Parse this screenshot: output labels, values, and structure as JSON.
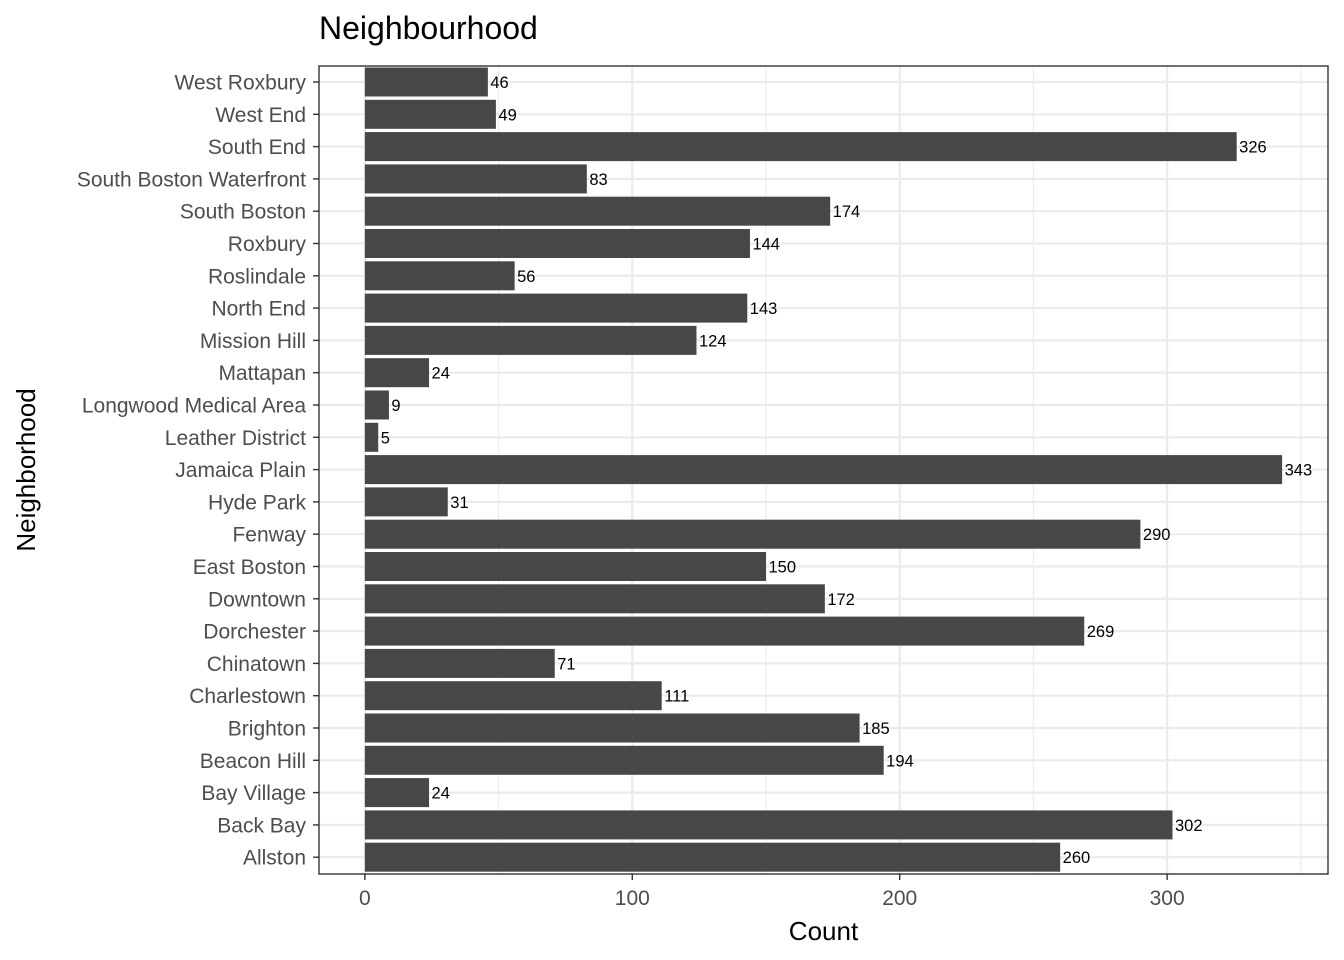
{
  "chart_data": {
    "type": "bar",
    "orientation": "horizontal",
    "title": "Neighbourhood",
    "xlabel": "Count",
    "ylabel": "Neighborhood",
    "categories": [
      "West Roxbury",
      "West End",
      "South End",
      "South Boston Waterfront",
      "South Boston",
      "Roxbury",
      "Roslindale",
      "North End",
      "Mission Hill",
      "Mattapan",
      "Longwood Medical Area",
      "Leather District",
      "Jamaica Plain",
      "Hyde Park",
      "Fenway",
      "East Boston",
      "Downtown",
      "Dorchester",
      "Chinatown",
      "Charlestown",
      "Brighton",
      "Beacon Hill",
      "Bay Village",
      "Back Bay",
      "Allston"
    ],
    "values": [
      46,
      49,
      326,
      83,
      174,
      144,
      56,
      143,
      124,
      24,
      9,
      5,
      343,
      31,
      290,
      150,
      172,
      269,
      71,
      111,
      185,
      194,
      24,
      302,
      260
    ],
    "xlim": [
      -17.15,
      360.15
    ],
    "xticks": [
      0,
      100,
      200,
      300
    ],
    "grid": true,
    "bar_color": "#474747",
    "grid_color": "#ebebeb",
    "panel_border_color": "#333333"
  }
}
